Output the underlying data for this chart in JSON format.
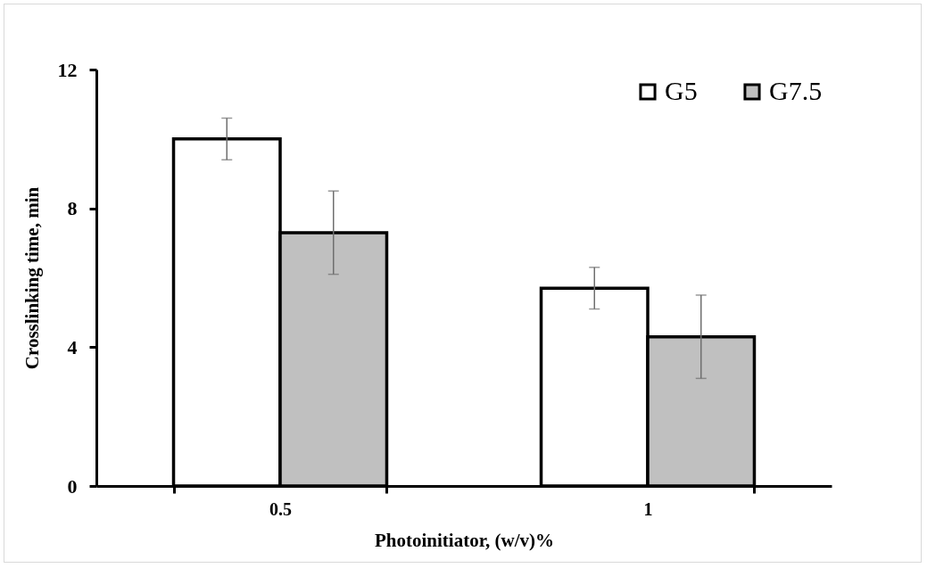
{
  "chart_data": {
    "type": "bar",
    "xlabel": "Photoinitiator, (w/v)%",
    "ylabel": "Crosslinking time, min",
    "categories": [
      "0.5",
      "1"
    ],
    "series": [
      {
        "name": "G5",
        "color": "#ffffff",
        "values": [
          10.0,
          5.7
        ],
        "errors": [
          0.6,
          0.6
        ]
      },
      {
        "name": "G7.5",
        "color": "#c0c0c0",
        "values": [
          7.3,
          4.3
        ],
        "errors": [
          1.2,
          1.2
        ]
      }
    ],
    "ylim": [
      0,
      12
    ],
    "yticks": [
      0,
      4,
      8,
      12
    ],
    "grid": false,
    "legend": "top right"
  }
}
